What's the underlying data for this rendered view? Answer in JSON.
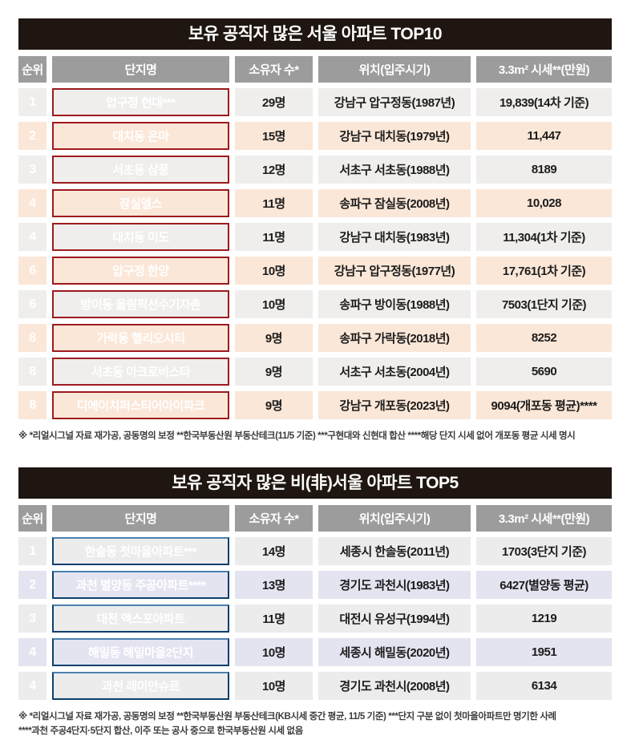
{
  "style": {
    "title_bg": "#1f1611",
    "header_bg": "#9c9c9c",
    "rank_bg": "#241b16",
    "footnote_color": "#3c3c3c"
  },
  "chart_data": [
    {
      "type": "table",
      "title": "보유 공직자 많은 서울 아파트 TOP10",
      "columns": [
        "순위",
        "단지명",
        "소유자 수*",
        "위치(입주시기)",
        "3.3m² 시세**(만원)"
      ],
      "colors": {
        "name_bg": "#c9242a",
        "name_border": "#9e1a1e",
        "name_border_top": "#9e1a1e",
        "base_row_bg": "#efeeec",
        "alt_row_bg": "#fbe7d8"
      },
      "rows": [
        {
          "rank": "1",
          "name": "압구정 현대***",
          "owners": "29명",
          "location": "강남구 압구정동(1987년)",
          "price": "19,839(14차 기준)"
        },
        {
          "rank": "2",
          "name": "대치동 은마",
          "owners": "15명",
          "location": "강남구 대치동(1979년)",
          "price": "11,447"
        },
        {
          "rank": "3",
          "name": "서초동 삼풍",
          "owners": "12명",
          "location": "서초구 서초동(1988년)",
          "price": "8189"
        },
        {
          "rank": "4",
          "name": "잠실엘스",
          "owners": "11명",
          "location": "송파구 잠실동(2008년)",
          "price": "10,028"
        },
        {
          "rank": "4",
          "name": "대치동 미도",
          "owners": "11명",
          "location": "강남구 대치동(1983년)",
          "price": "11,304(1차 기준)"
        },
        {
          "rank": "6",
          "name": "압구정 한양",
          "owners": "10명",
          "location": "강남구 압구정동(1977년)",
          "price": "17,761(1차 기준)"
        },
        {
          "rank": "6",
          "name": "방이동 올림픽선수기자촌",
          "owners": "10명",
          "location": "송파구 방이동(1988년)",
          "price": "7503(1단지 기준)"
        },
        {
          "rank": "8",
          "name": "가락동 헬리오시티",
          "owners": "9명",
          "location": "송파구 가락동(2018년)",
          "price": "8252"
        },
        {
          "rank": "8",
          "name": "서초동 아크로비스타",
          "owners": "9명",
          "location": "서초구 서초동(2004년)",
          "price": "5690"
        },
        {
          "rank": "8",
          "name": "디에이치퍼스티어아이파크",
          "owners": "9명",
          "location": "강남구 개포동(2023년)",
          "price": "9094(개포동 평균)****"
        }
      ],
      "footnotes": [
        "※ *리얼시그널 자료 재가공, 공동명의 보정 **한국부동산원 부동산테크(11/5 기준) ***구현대와 신현대 합산 ****해당 단지 시세 없어 개포동 평균 시세 명시"
      ]
    },
    {
      "type": "table",
      "title": "보유 공직자 많은 비(非)서울 아파트 TOP5",
      "columns": [
        "순위",
        "단지명",
        "소유자 수*",
        "위치(입주시기)",
        "3.3m² 시세**(만원)"
      ],
      "colors": {
        "name_bg": "#12538e",
        "name_border": "#0d3f6e",
        "name_border_top": "#4b80b0",
        "base_row_bg": "#ececec",
        "alt_row_bg": "#e4e4f1"
      },
      "rows": [
        {
          "rank": "1",
          "name": "한솔동 첫마을아파트***",
          "owners": "14명",
          "location": "세종시 한솔동(2011년)",
          "price": "1703(3단지 기준)"
        },
        {
          "rank": "2",
          "name": "과천 별양동 주공아파트****",
          "owners": "13명",
          "location": "경기도 과천시(1983년)",
          "price": "6427(별양동 평균)"
        },
        {
          "rank": "3",
          "name": "대전 엑스포아파트",
          "owners": "11명",
          "location": "대전시 유성구(1994년)",
          "price": "1219"
        },
        {
          "rank": "4",
          "name": "해밀동 해밀마을2단지",
          "owners": "10명",
          "location": "세종시 해밀동(2020년)",
          "price": "1951"
        },
        {
          "rank": "4",
          "name": "과천 래미안슈르",
          "owners": "10명",
          "location": "경기도 과천시(2008년)",
          "price": "6134"
        }
      ],
      "footnotes": [
        "※ *리얼시그널 자료 재가공, 공동명의 보정 **한국부동산원 부동산테크(KB시세 중간 평균, 11/5 기준) ***단지 구분 없이 첫마을아파트만 명기한 사례",
        "****과천 주공4단지·5단지 합산, 이주 또는 공사 중으로 한국부동산원 시세 없음"
      ]
    }
  ]
}
